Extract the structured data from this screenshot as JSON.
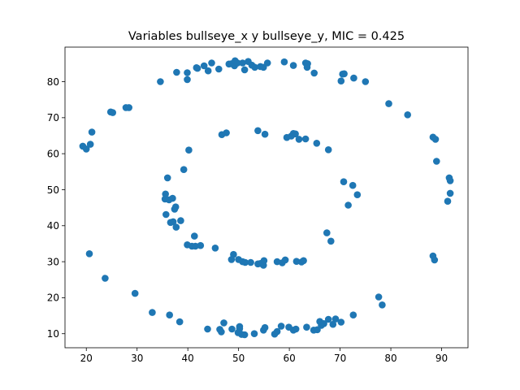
{
  "chart_data": {
    "type": "scatter",
    "title": "Variables bullseye_x y bullseye_y, MIC = 0.425",
    "xlabel": "",
    "ylabel": "",
    "xlim": [
      15.8,
      95.2
    ],
    "ylim": [
      6.1,
      89.6
    ],
    "xticks": [
      20,
      30,
      40,
      50,
      60,
      70,
      80,
      90
    ],
    "yticks": [
      10,
      20,
      30,
      40,
      50,
      60,
      70,
      80
    ],
    "grid": false,
    "color": "#1f77b4",
    "series": [
      {
        "points": [
          [
            19.3,
            62.1
          ],
          [
            20.0,
            61.3
          ],
          [
            20.8,
            62.6
          ],
          [
            21.1,
            66.0
          ],
          [
            24.8,
            71.6
          ],
          [
            25.2,
            71.4
          ],
          [
            27.8,
            72.8
          ],
          [
            28.4,
            72.8
          ],
          [
            34.6,
            80.0
          ],
          [
            37.8,
            82.6
          ],
          [
            39.9,
            82.5
          ],
          [
            39.9,
            80.6
          ],
          [
            41.7,
            83.9
          ],
          [
            41.9,
            83.7
          ],
          [
            43.2,
            84.4
          ],
          [
            44.0,
            83.0
          ],
          [
            44.7,
            85.2
          ],
          [
            46.1,
            83.5
          ],
          [
            48.1,
            84.9
          ],
          [
            48.6,
            85.0
          ],
          [
            49.2,
            84.4
          ],
          [
            49.3,
            85.8
          ],
          [
            49.8,
            85.2
          ],
          [
            50.8,
            85.2
          ],
          [
            51.2,
            83.3
          ],
          [
            51.9,
            85.6
          ],
          [
            52.6,
            84.6
          ],
          [
            53.2,
            84.0
          ],
          [
            54.3,
            84.2
          ],
          [
            54.9,
            84.0
          ],
          [
            55.7,
            85.2
          ],
          [
            59.0,
            85.5
          ],
          [
            60.8,
            84.5
          ],
          [
            63.2,
            85.2
          ],
          [
            63.5,
            84.0
          ],
          [
            63.6,
            85.0
          ],
          [
            64.9,
            82.4
          ],
          [
            70.2,
            80.2
          ],
          [
            70.5,
            82.1
          ],
          [
            70.8,
            82.2
          ],
          [
            72.7,
            81.0
          ],
          [
            75.0,
            80.0
          ],
          [
            79.6,
            73.9
          ],
          [
            83.3,
            70.8
          ],
          [
            88.3,
            64.6
          ],
          [
            88.8,
            64.0
          ],
          [
            89.0,
            57.9
          ],
          [
            91.2,
            46.8
          ],
          [
            91.5,
            53.3
          ],
          [
            91.7,
            52.5
          ],
          [
            91.7,
            49.0
          ],
          [
            88.3,
            31.6
          ],
          [
            88.6,
            30.5
          ],
          [
            77.6,
            20.2
          ],
          [
            78.3,
            18.0
          ],
          [
            72.6,
            15.2
          ],
          [
            70.2,
            13.2
          ],
          [
            69.1,
            14.1
          ],
          [
            68.6,
            12.6
          ],
          [
            67.7,
            14.0
          ],
          [
            66.8,
            12.8
          ],
          [
            66.3,
            12.3
          ],
          [
            66.0,
            13.4
          ],
          [
            65.5,
            11.1
          ],
          [
            64.8,
            11.0
          ],
          [
            63.4,
            11.8
          ],
          [
            61.3,
            11.3
          ],
          [
            60.8,
            11.0
          ],
          [
            59.9,
            11.8
          ],
          [
            58.4,
            12.1
          ],
          [
            57.6,
            10.6
          ],
          [
            57.1,
            9.9
          ],
          [
            55.2,
            11.7
          ],
          [
            54.9,
            11.0
          ],
          [
            53.1,
            10.0
          ],
          [
            51.2,
            9.7
          ],
          [
            50.6,
            9.8
          ],
          [
            50.2,
            12.0
          ],
          [
            50.2,
            11.4
          ],
          [
            49.9,
            10.3
          ],
          [
            48.7,
            11.3
          ],
          [
            47.1,
            13.0
          ],
          [
            46.6,
            10.5
          ],
          [
            46.3,
            11.2
          ],
          [
            43.9,
            11.3
          ],
          [
            38.4,
            13.3
          ],
          [
            36.4,
            15.2
          ],
          [
            33.0,
            15.9
          ],
          [
            29.6,
            21.2
          ],
          [
            23.7,
            25.4
          ],
          [
            20.6,
            32.2
          ],
          [
            35.5,
            47.4
          ],
          [
            35.6,
            48.8
          ],
          [
            35.7,
            43.1
          ],
          [
            36.0,
            53.3
          ],
          [
            36.3,
            47.2
          ],
          [
            36.6,
            40.9
          ],
          [
            37.0,
            47.6
          ],
          [
            37.1,
            41.1
          ],
          [
            37.4,
            44.6
          ],
          [
            37.6,
            45.2
          ],
          [
            37.7,
            39.6
          ],
          [
            38.6,
            41.4
          ],
          [
            39.2,
            55.6
          ],
          [
            39.9,
            34.7
          ],
          [
            40.2,
            61.0
          ],
          [
            40.8,
            34.3
          ],
          [
            41.3,
            37.1
          ],
          [
            41.5,
            34.3
          ],
          [
            42.5,
            34.5
          ],
          [
            45.4,
            33.8
          ],
          [
            46.7,
            65.3
          ],
          [
            47.6,
            65.8
          ],
          [
            48.6,
            30.6
          ],
          [
            49.0,
            32.0
          ],
          [
            50.0,
            30.6
          ],
          [
            50.8,
            30.0
          ],
          [
            51.3,
            29.8
          ],
          [
            52.4,
            29.8
          ],
          [
            53.8,
            66.4
          ],
          [
            53.8,
            29.4
          ],
          [
            54.3,
            29.5
          ],
          [
            54.9,
            29.0
          ],
          [
            55.0,
            30.3
          ],
          [
            55.2,
            65.4
          ],
          [
            57.6,
            30.0
          ],
          [
            58.6,
            29.7
          ],
          [
            59.2,
            30.5
          ],
          [
            59.5,
            64.5
          ],
          [
            60.4,
            64.9
          ],
          [
            60.8,
            65.6
          ],
          [
            61.2,
            65.5
          ],
          [
            61.4,
            30.1
          ],
          [
            61.9,
            64.0
          ],
          [
            62.4,
            29.9
          ],
          [
            62.8,
            30.3
          ],
          [
            63.2,
            64.1
          ],
          [
            65.4,
            62.9
          ],
          [
            67.7,
            61.1
          ],
          [
            67.4,
            38.0
          ],
          [
            68.2,
            35.7
          ],
          [
            70.7,
            52.2
          ],
          [
            71.6,
            45.7
          ],
          [
            72.5,
            51.2
          ],
          [
            73.4,
            48.6
          ]
        ]
      }
    ]
  }
}
